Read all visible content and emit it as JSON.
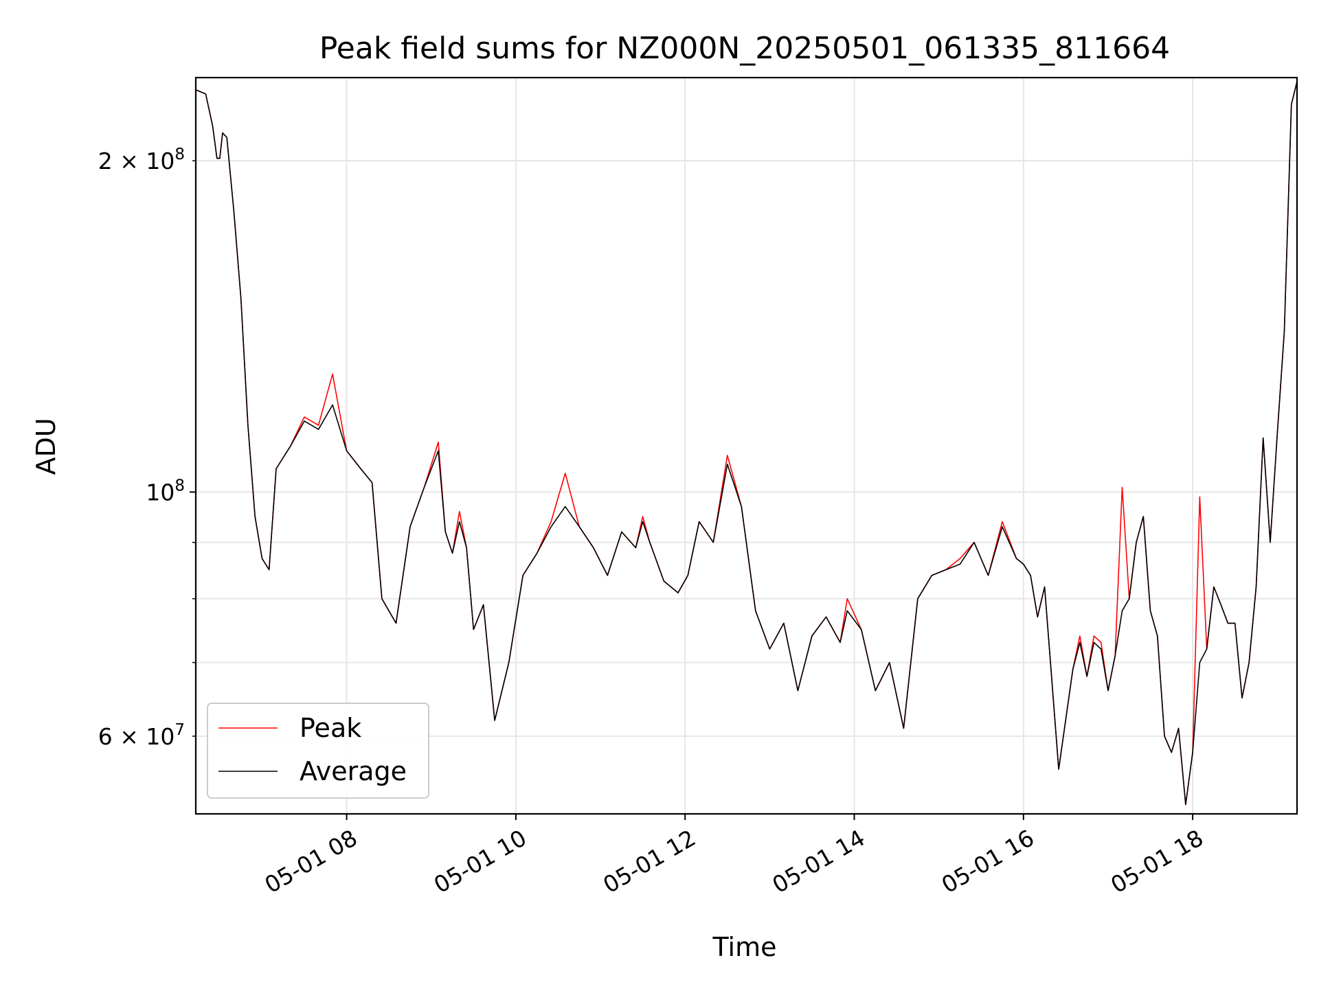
{
  "chart_data": {
    "type": "line",
    "title": "Peak field sums for NZ000N_20250501_061335_811664",
    "xlabel": "Time",
    "ylabel": "ADU",
    "yscale": "log",
    "grid": true,
    "legend_position": "lower-left",
    "xlim": [
      "2025-05-01 06:13",
      "2025-05-01 19:14"
    ],
    "ylim": [
      51000000,
      238000000
    ],
    "x_ticks": [
      {
        "value": "2025-05-01 08:00",
        "label": "05-01 08"
      },
      {
        "value": "2025-05-01 10:00",
        "label": "05-01 10"
      },
      {
        "value": "2025-05-01 12:00",
        "label": "05-01 12"
      },
      {
        "value": "2025-05-01 14:00",
        "label": "05-01 14"
      },
      {
        "value": "2025-05-01 16:00",
        "label": "05-01 16"
      },
      {
        "value": "2025-05-01 18:00",
        "label": "05-01 18"
      }
    ],
    "y_major_ticks": [
      {
        "value": 100000000,
        "label_base": "10",
        "label_exp": "8"
      }
    ],
    "y_minor_ticks": [
      {
        "value": 60000000,
        "label_base": "6 × 10",
        "label_exp": "7"
      },
      {
        "value": 70000000
      },
      {
        "value": 80000000
      },
      {
        "value": 90000000
      },
      {
        "value": 200000000,
        "label_base": "2 × 10",
        "label_exp": "8"
      }
    ],
    "x": [
      "2025-05-01 06:13",
      "2025-05-01 06:20",
      "2025-05-01 06:25",
      "2025-05-01 06:28",
      "2025-05-01 06:30",
      "2025-05-01 06:32",
      "2025-05-01 06:35",
      "2025-05-01 06:40",
      "2025-05-01 06:45",
      "2025-05-01 06:50",
      "2025-05-01 06:55",
      "2025-05-01 07:00",
      "2025-05-01 07:05",
      "2025-05-01 07:10",
      "2025-05-01 07:20",
      "2025-05-01 07:30",
      "2025-05-01 07:40",
      "2025-05-01 07:50",
      "2025-05-01 08:00",
      "2025-05-01 08:10",
      "2025-05-01 08:18",
      "2025-05-01 08:25",
      "2025-05-01 08:35",
      "2025-05-01 08:45",
      "2025-05-01 08:55",
      "2025-05-01 09:05",
      "2025-05-01 09:10",
      "2025-05-01 09:15",
      "2025-05-01 09:20",
      "2025-05-01 09:25",
      "2025-05-01 09:30",
      "2025-05-01 09:37",
      "2025-05-01 09:45",
      "2025-05-01 09:55",
      "2025-05-01 10:05",
      "2025-05-01 10:15",
      "2025-05-01 10:25",
      "2025-05-01 10:35",
      "2025-05-01 10:45",
      "2025-05-01 10:55",
      "2025-05-01 11:05",
      "2025-05-01 11:15",
      "2025-05-01 11:25",
      "2025-05-01 11:30",
      "2025-05-01 11:35",
      "2025-05-01 11:45",
      "2025-05-01 11:55",
      "2025-05-01 12:02",
      "2025-05-01 12:10",
      "2025-05-01 12:15",
      "2025-05-01 12:20",
      "2025-05-01 12:30",
      "2025-05-01 12:40",
      "2025-05-01 12:50",
      "2025-05-01 13:00",
      "2025-05-01 13:10",
      "2025-05-01 13:20",
      "2025-05-01 13:30",
      "2025-05-01 13:40",
      "2025-05-01 13:50",
      "2025-05-01 13:55",
      "2025-05-01 14:05",
      "2025-05-01 14:15",
      "2025-05-01 14:25",
      "2025-05-01 14:35",
      "2025-05-01 14:45",
      "2025-05-01 14:55",
      "2025-05-01 15:05",
      "2025-05-01 15:15",
      "2025-05-01 15:25",
      "2025-05-01 15:35",
      "2025-05-01 15:45",
      "2025-05-01 15:55",
      "2025-05-01 16:00",
      "2025-05-01 16:05",
      "2025-05-01 16:10",
      "2025-05-01 16:15",
      "2025-05-01 16:25",
      "2025-05-01 16:35",
      "2025-05-01 16:40",
      "2025-05-01 16:45",
      "2025-05-01 16:50",
      "2025-05-01 16:55",
      "2025-05-01 17:00",
      "2025-05-01 17:05",
      "2025-05-01 17:10",
      "2025-05-01 17:15",
      "2025-05-01 17:20",
      "2025-05-01 17:25",
      "2025-05-01 17:30",
      "2025-05-01 17:35",
      "2025-05-01 17:40",
      "2025-05-01 17:45",
      "2025-05-01 17:50",
      "2025-05-01 17:55",
      "2025-05-01 18:00",
      "2025-05-01 18:05",
      "2025-05-01 18:10",
      "2025-05-01 18:15",
      "2025-05-01 18:20",
      "2025-05-01 18:25",
      "2025-05-01 18:30",
      "2025-05-01 18:35",
      "2025-05-01 18:40",
      "2025-05-01 18:45",
      "2025-05-01 18:50",
      "2025-05-01 18:55",
      "2025-05-01 19:00",
      "2025-05-01 19:05",
      "2025-05-01 19:10",
      "2025-05-01 19:14"
    ],
    "series": [
      {
        "name": "Peak",
        "color": "#ff0000",
        "values": [
          232000000,
          230000000,
          215000000,
          201000000,
          201000000,
          212000000,
          210000000,
          180000000,
          150000000,
          115000000,
          95000000,
          87000000,
          85000000,
          105000000,
          110000000,
          117000000,
          115000000,
          128000000,
          109000000,
          105000000,
          102000000,
          80000000,
          76000000,
          93000000,
          101000000,
          111000000,
          92000000,
          88000000,
          96000000,
          89000000,
          75000000,
          79000000,
          62000000,
          70000000,
          84000000,
          88000000,
          94000000,
          104000000,
          93000000,
          89000000,
          84000000,
          92000000,
          89000000,
          95000000,
          90000000,
          83000000,
          81000000,
          84000000,
          94000000,
          92000000,
          90000000,
          108000000,
          97000000,
          78000000,
          72000000,
          76000000,
          66000000,
          74000000,
          77000000,
          73000000,
          80000000,
          75000000,
          66000000,
          70000000,
          61000000,
          80000000,
          84000000,
          85000000,
          87000000,
          90000000,
          84000000,
          94000000,
          87000000,
          86000000,
          84000000,
          77000000,
          82000000,
          56000000,
          69000000,
          74000000,
          68000000,
          74000000,
          73000000,
          66000000,
          71000000,
          101000000,
          80000000,
          90000000,
          95000000,
          78000000,
          74000000,
          60000000,
          58000000,
          61000000,
          52000000,
          58000000,
          99000000,
          72000000,
          82000000,
          79000000,
          76000000,
          76000000,
          65000000,
          70000000,
          82000000,
          112000000,
          90000000,
          113000000,
          140000000,
          225000000,
          236000000
        ]
      },
      {
        "name": "Average",
        "color": "#000000",
        "values": [
          232000000,
          230000000,
          215000000,
          201000000,
          201000000,
          212000000,
          210000000,
          180000000,
          150000000,
          115000000,
          95000000,
          87000000,
          85000000,
          105000000,
          110000000,
          116000000,
          114000000,
          120000000,
          109000000,
          105000000,
          102000000,
          80000000,
          76000000,
          93000000,
          101000000,
          109000000,
          92000000,
          88000000,
          94000000,
          89000000,
          75000000,
          79000000,
          62000000,
          70000000,
          84000000,
          88000000,
          93000000,
          97000000,
          93000000,
          89000000,
          84000000,
          92000000,
          89000000,
          94000000,
          90000000,
          83000000,
          81000000,
          84000000,
          94000000,
          92000000,
          90000000,
          106000000,
          97000000,
          78000000,
          72000000,
          76000000,
          66000000,
          74000000,
          77000000,
          73000000,
          78000000,
          75000000,
          66000000,
          70000000,
          61000000,
          80000000,
          84000000,
          85000000,
          86000000,
          90000000,
          84000000,
          93000000,
          87000000,
          86000000,
          84000000,
          77000000,
          82000000,
          56000000,
          69000000,
          73000000,
          68000000,
          73000000,
          72000000,
          66000000,
          71000000,
          78000000,
          80000000,
          90000000,
          95000000,
          78000000,
          74000000,
          60000000,
          58000000,
          61000000,
          52000000,
          58000000,
          70000000,
          72000000,
          82000000,
          79000000,
          76000000,
          76000000,
          65000000,
          70000000,
          82000000,
          112000000,
          90000000,
          113000000,
          140000000,
          225000000,
          236000000
        ]
      }
    ]
  }
}
